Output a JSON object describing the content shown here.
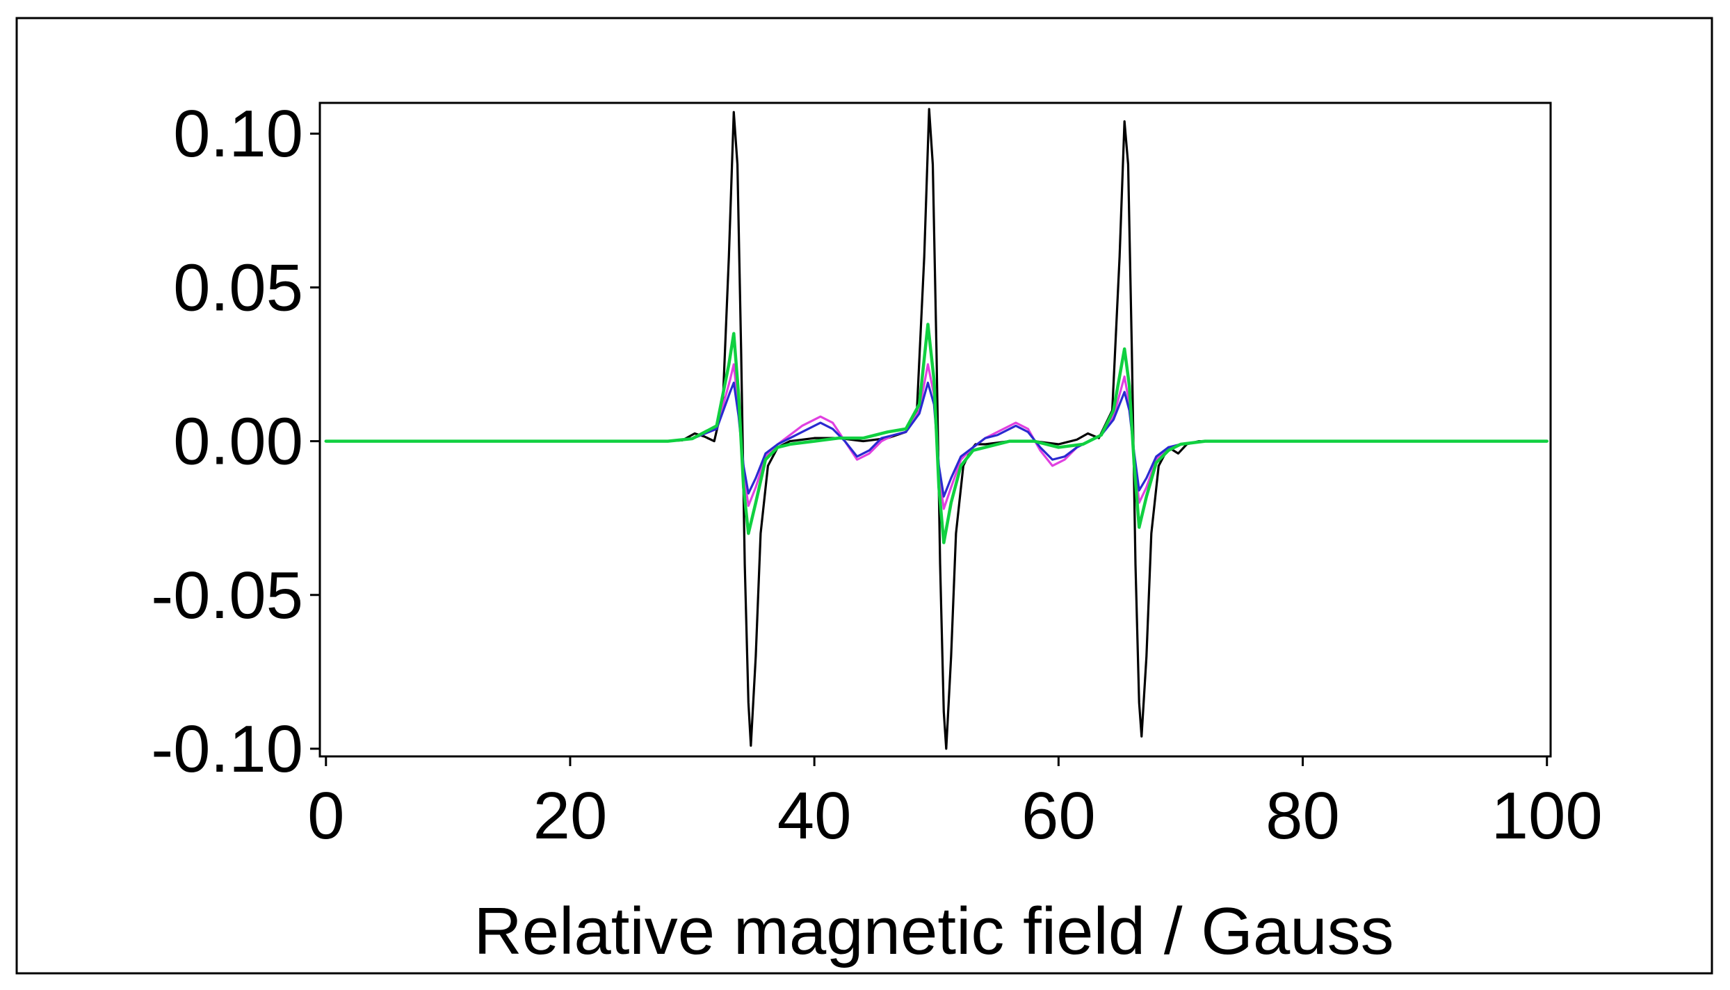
{
  "chart_data": {
    "type": "line",
    "title": "",
    "xlabel": "Relative magnetic field / Gauss",
    "ylabel": "",
    "xlim": [
      -0.5,
      100.3
    ],
    "ylim": [
      -0.1025,
      0.11
    ],
    "xticks": [
      0,
      20,
      40,
      60,
      80,
      100
    ],
    "xtick_labels": [
      "0",
      "20",
      "40",
      "60",
      "80",
      "100"
    ],
    "yticks": [
      0.1,
      0.05,
      0.0,
      -0.05,
      -0.1
    ],
    "ytick_labels": [
      "0.10",
      "0.05",
      "0.00",
      "-0.05",
      "-0.10"
    ],
    "grid": false,
    "legend": "none",
    "colors": {
      "frame": "#000000",
      "background": "#ffffff",
      "black": "#000000",
      "magenta": "#e040e0",
      "blue": "#2a2ad0",
      "green": "#10d040"
    },
    "series": [
      {
        "color": "#000000",
        "stroke_width": 3.2,
        "points": [
          [
            0,
            0
          ],
          [
            10,
            0
          ],
          [
            20,
            0
          ],
          [
            28,
            0
          ],
          [
            29.2,
            0.0003
          ],
          [
            30.2,
            0.0025
          ],
          [
            31,
            0.0015
          ],
          [
            31.8,
            0
          ],
          [
            32.5,
            0.012
          ],
          [
            33.0,
            0.06
          ],
          [
            33.4,
            0.107
          ],
          [
            33.7,
            0.09
          ],
          [
            34.0,
            0.03
          ],
          [
            34.3,
            -0.04
          ],
          [
            34.6,
            -0.085
          ],
          [
            34.8,
            -0.099
          ],
          [
            35.2,
            -0.07
          ],
          [
            35.6,
            -0.03
          ],
          [
            36.2,
            -0.008
          ],
          [
            37,
            -0.002
          ],
          [
            38,
            0
          ],
          [
            40,
            0.001
          ],
          [
            42,
            0.001
          ],
          [
            44,
            0
          ],
          [
            46,
            0.001
          ],
          [
            47.5,
            0.003
          ],
          [
            48.4,
            0.01
          ],
          [
            49.0,
            0.06
          ],
          [
            49.4,
            0.108
          ],
          [
            49.7,
            0.09
          ],
          [
            50.0,
            0.03
          ],
          [
            50.3,
            -0.04
          ],
          [
            50.6,
            -0.088
          ],
          [
            50.8,
            -0.1
          ],
          [
            51.2,
            -0.07
          ],
          [
            51.6,
            -0.03
          ],
          [
            52.2,
            -0.008
          ],
          [
            52.8,
            -0.003
          ],
          [
            53.2,
            -0.001
          ],
          [
            54,
            -0.001
          ],
          [
            56,
            0
          ],
          [
            58,
            0
          ],
          [
            60,
            -0.001
          ],
          [
            61.5,
            0.0005
          ],
          [
            62.4,
            0.0025
          ],
          [
            63.3,
            0.001
          ],
          [
            64.4,
            0.01
          ],
          [
            65.0,
            0.06
          ],
          [
            65.4,
            0.104
          ],
          [
            65.7,
            0.09
          ],
          [
            66.0,
            0.03
          ],
          [
            66.3,
            -0.04
          ],
          [
            66.6,
            -0.085
          ],
          [
            66.8,
            -0.096
          ],
          [
            67.2,
            -0.07
          ],
          [
            67.6,
            -0.03
          ],
          [
            68.2,
            -0.008
          ],
          [
            69,
            -0.002
          ],
          [
            69.8,
            -0.004
          ],
          [
            70.5,
            -0.001
          ],
          [
            71.5,
            0
          ],
          [
            80,
            0
          ],
          [
            90,
            0
          ],
          [
            100,
            0
          ]
        ]
      },
      {
        "color": "#e040e0",
        "stroke_width": 3.2,
        "points": [
          [
            0,
            0
          ],
          [
            20,
            0
          ],
          [
            28,
            0
          ],
          [
            30,
            0.0008
          ],
          [
            32,
            0.004
          ],
          [
            33.1,
            0.02
          ],
          [
            33.4,
            0.025
          ],
          [
            33.8,
            0.01
          ],
          [
            34.2,
            -0.01
          ],
          [
            34.6,
            -0.021
          ],
          [
            35.2,
            -0.015
          ],
          [
            36,
            -0.005
          ],
          [
            37,
            -0.001
          ],
          [
            38,
            0.002
          ],
          [
            39,
            0.005
          ],
          [
            40.5,
            0.008
          ],
          [
            41.5,
            0.006
          ],
          [
            42.5,
            0
          ],
          [
            43.5,
            -0.006
          ],
          [
            44.5,
            -0.004
          ],
          [
            45.5,
            0
          ],
          [
            46.5,
            0.002
          ],
          [
            47.5,
            0.003
          ],
          [
            48.6,
            0.01
          ],
          [
            49.3,
            0.025
          ],
          [
            49.8,
            0.015
          ],
          [
            50.2,
            -0.01
          ],
          [
            50.6,
            -0.022
          ],
          [
            51.2,
            -0.015
          ],
          [
            52,
            -0.006
          ],
          [
            53,
            -0.002
          ],
          [
            54,
            0.001
          ],
          [
            55,
            0.003
          ],
          [
            56.5,
            0.006
          ],
          [
            57.5,
            0.004
          ],
          [
            58.5,
            -0.003
          ],
          [
            59.5,
            -0.008
          ],
          [
            60.5,
            -0.006
          ],
          [
            61.5,
            -0.002
          ],
          [
            62.5,
            0
          ],
          [
            63.5,
            0.002
          ],
          [
            64.5,
            0.008
          ],
          [
            65.4,
            0.021
          ],
          [
            65.8,
            0.012
          ],
          [
            66.2,
            -0.005
          ],
          [
            66.6,
            -0.02
          ],
          [
            67.2,
            -0.015
          ],
          [
            68,
            -0.006
          ],
          [
            69,
            -0.002
          ],
          [
            70,
            -0.001
          ],
          [
            72,
            0
          ],
          [
            80,
            0
          ],
          [
            100,
            0
          ]
        ]
      },
      {
        "color": "#2a2ad0",
        "stroke_width": 3.2,
        "points": [
          [
            0,
            0
          ],
          [
            20,
            0
          ],
          [
            28,
            0
          ],
          [
            30,
            0.0008
          ],
          [
            32,
            0.004
          ],
          [
            33.1,
            0.016
          ],
          [
            33.4,
            0.019
          ],
          [
            33.8,
            0.008
          ],
          [
            34.2,
            -0.008
          ],
          [
            34.6,
            -0.017
          ],
          [
            35.2,
            -0.012
          ],
          [
            36,
            -0.004
          ],
          [
            37,
            -0.001
          ],
          [
            38,
            0.001
          ],
          [
            39,
            0.003
          ],
          [
            40.5,
            0.006
          ],
          [
            41.5,
            0.004
          ],
          [
            42.5,
            0
          ],
          [
            43.5,
            -0.005
          ],
          [
            44.5,
            -0.003
          ],
          [
            45.5,
            0.001
          ],
          [
            46.5,
            0.002
          ],
          [
            47.5,
            0.003
          ],
          [
            48.6,
            0.009
          ],
          [
            49.3,
            0.019
          ],
          [
            49.8,
            0.012
          ],
          [
            50.2,
            -0.008
          ],
          [
            50.6,
            -0.018
          ],
          [
            51.2,
            -0.012
          ],
          [
            52,
            -0.005
          ],
          [
            53,
            -0.002
          ],
          [
            54,
            0.001
          ],
          [
            55,
            0.002
          ],
          [
            56.5,
            0.005
          ],
          [
            57.5,
            0.003
          ],
          [
            58.5,
            -0.002
          ],
          [
            59.5,
            -0.006
          ],
          [
            60.5,
            -0.005
          ],
          [
            61.5,
            -0.002
          ],
          [
            62.5,
            0
          ],
          [
            63.5,
            0.002
          ],
          [
            64.5,
            0.007
          ],
          [
            65.4,
            0.016
          ],
          [
            65.8,
            0.01
          ],
          [
            66.2,
            -0.004
          ],
          [
            66.6,
            -0.016
          ],
          [
            67.2,
            -0.012
          ],
          [
            68,
            -0.005
          ],
          [
            69,
            -0.002
          ],
          [
            70,
            -0.001
          ],
          [
            72,
            0
          ],
          [
            80,
            0
          ],
          [
            100,
            0
          ]
        ]
      },
      {
        "color": "#10d040",
        "stroke_width": 4.5,
        "points": [
          [
            0,
            0
          ],
          [
            20,
            0
          ],
          [
            28,
            0
          ],
          [
            30,
            0.0008
          ],
          [
            32,
            0.005
          ],
          [
            33.0,
            0.025
          ],
          [
            33.4,
            0.035
          ],
          [
            33.8,
            0.015
          ],
          [
            34.2,
            -0.015
          ],
          [
            34.6,
            -0.03
          ],
          [
            35.2,
            -0.02
          ],
          [
            36,
            -0.006
          ],
          [
            37,
            -0.002
          ],
          [
            38,
            -0.001
          ],
          [
            40,
            0
          ],
          [
            42,
            0.001
          ],
          [
            44,
            0.001
          ],
          [
            46,
            0.003
          ],
          [
            47.5,
            0.004
          ],
          [
            48.6,
            0.012
          ],
          [
            49.3,
            0.038
          ],
          [
            49.8,
            0.02
          ],
          [
            50.2,
            -0.015
          ],
          [
            50.6,
            -0.033
          ],
          [
            51.2,
            -0.02
          ],
          [
            52,
            -0.008
          ],
          [
            53,
            -0.003
          ],
          [
            54,
            -0.002
          ],
          [
            56,
            0
          ],
          [
            58,
            0
          ],
          [
            60,
            -0.002
          ],
          [
            62,
            -0.001
          ],
          [
            63.5,
            0.002
          ],
          [
            64.5,
            0.01
          ],
          [
            65.4,
            0.03
          ],
          [
            65.8,
            0.018
          ],
          [
            66.2,
            -0.008
          ],
          [
            66.6,
            -0.028
          ],
          [
            67.2,
            -0.018
          ],
          [
            68,
            -0.007
          ],
          [
            69,
            -0.003
          ],
          [
            70,
            -0.001
          ],
          [
            72,
            0
          ],
          [
            80,
            0
          ],
          [
            100,
            0
          ]
        ]
      }
    ]
  }
}
